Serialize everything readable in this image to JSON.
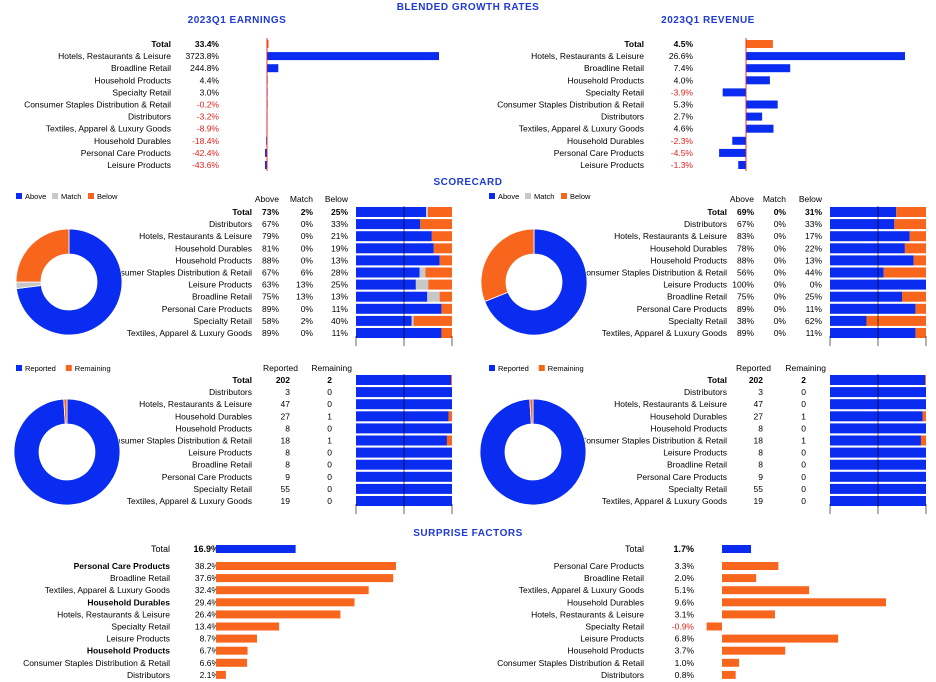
{
  "colors": {
    "blue": "#0a2cf0",
    "orange": "#f8661e",
    "match_gray": "#c8c8c8",
    "heading": "#1f3ad6",
    "negative": "#e4201c"
  },
  "sections": {
    "blended_title": "BLENDED GROWTH RATES",
    "scorecard_title": "SCORECARD",
    "surprise_title": "SURPRISE FACTORS"
  },
  "earnings_growth": {
    "title": "2023Q1 EARNINGS",
    "total_label": "Total",
    "total_value": "33.4%",
    "total_num": 33.4,
    "rows": [
      {
        "label": "Hotels, Restaurants & Leisure",
        "value": "3723.8%",
        "num": 3723.8
      },
      {
        "label": "Broadline Retail",
        "value": "244.8%",
        "num": 244.8
      },
      {
        "label": "Household Products",
        "value": "4.4%",
        "num": 4.4
      },
      {
        "label": "Specialty Retail",
        "value": "3.0%",
        "num": 3.0
      },
      {
        "label": "Consumer Staples Distribution & Retail",
        "value": "-0.2%",
        "num": -0.2
      },
      {
        "label": "Distributors",
        "value": "-3.2%",
        "num": -3.2
      },
      {
        "label": "Textiles, Apparel & Luxury Goods",
        "value": "-8.9%",
        "num": -8.9
      },
      {
        "label": "Household Durables",
        "value": "-18.4%",
        "num": -18.4
      },
      {
        "label": "Personal Care Products",
        "value": "-42.4%",
        "num": -42.4
      },
      {
        "label": "Leisure Products",
        "value": "-43.6%",
        "num": -43.6
      }
    ]
  },
  "revenue_growth": {
    "title": "2023Q1 REVENUE",
    "total_label": "Total",
    "total_value": "4.5%",
    "total_num": 4.5,
    "rows": [
      {
        "label": "Hotels, Restaurants & Leisure",
        "value": "26.6%",
        "num": 26.6
      },
      {
        "label": "Broadline Retail",
        "value": "7.4%",
        "num": 7.4
      },
      {
        "label": "Household Products",
        "value": "4.0%",
        "num": 4.0
      },
      {
        "label": "Specialty Retail",
        "value": "-3.9%",
        "num": -3.9
      },
      {
        "label": "Consumer Staples Distribution & Retail",
        "value": "5.3%",
        "num": 5.3
      },
      {
        "label": "Distributors",
        "value": "2.7%",
        "num": 2.7
      },
      {
        "label": "Textiles, Apparel & Luxury Goods",
        "value": "4.6%",
        "num": 4.6
      },
      {
        "label": "Household Durables",
        "value": "-2.3%",
        "num": -2.3
      },
      {
        "label": "Personal Care Products",
        "value": "-4.5%",
        "num": -4.5
      },
      {
        "label": "Leisure Products",
        "value": "-1.3%",
        "num": -1.3
      }
    ]
  },
  "scorecard_legend": [
    "Above",
    "Match",
    "Below"
  ],
  "scorecard_headers": [
    "Above",
    "Match",
    "Below"
  ],
  "earnings_scorecard": {
    "total": {
      "label": "Total",
      "above": "73%",
      "match": "2%",
      "below": "25%",
      "a": 73,
      "m": 2,
      "b": 25
    },
    "rows": [
      {
        "label": "Distributors",
        "above": "67%",
        "match": "0%",
        "below": "33%",
        "a": 67,
        "m": 0,
        "b": 33
      },
      {
        "label": "Hotels, Restaurants & Leisure",
        "above": "79%",
        "match": "0%",
        "below": "21%",
        "a": 79,
        "m": 0,
        "b": 21
      },
      {
        "label": "Household Durables",
        "above": "81%",
        "match": "0%",
        "below": "19%",
        "a": 81,
        "m": 0,
        "b": 19
      },
      {
        "label": "Household Products",
        "above": "88%",
        "match": "0%",
        "below": "13%",
        "a": 88,
        "m": 0,
        "b": 13
      },
      {
        "label": "Consumer Staples Distribution & Retail",
        "above": "67%",
        "match": "6%",
        "below": "28%",
        "a": 67,
        "m": 6,
        "b": 28
      },
      {
        "label": "Leisure Products",
        "above": "63%",
        "match": "13%",
        "below": "25%",
        "a": 63,
        "m": 13,
        "b": 25
      },
      {
        "label": "Broadline Retail",
        "above": "75%",
        "match": "13%",
        "below": "13%",
        "a": 75,
        "m": 13,
        "b": 13
      },
      {
        "label": "Personal Care Products",
        "above": "89%",
        "match": "0%",
        "below": "11%",
        "a": 89,
        "m": 0,
        "b": 11
      },
      {
        "label": "Specialty Retail",
        "above": "58%",
        "match": "2%",
        "below": "40%",
        "a": 58,
        "m": 2,
        "b": 40
      },
      {
        "label": "Textiles, Apparel & Luxury Goods",
        "above": "89%",
        "match": "0%",
        "below": "11%",
        "a": 89,
        "m": 0,
        "b": 11
      }
    ]
  },
  "revenue_scorecard": {
    "total": {
      "label": "Total",
      "above": "69%",
      "match": "0%",
      "below": "31%",
      "a": 69,
      "m": 0,
      "b": 31
    },
    "rows": [
      {
        "label": "Distributors",
        "above": "67%",
        "match": "0%",
        "below": "33%",
        "a": 67,
        "m": 0,
        "b": 33
      },
      {
        "label": "Hotels, Restaurants & Leisure",
        "above": "83%",
        "match": "0%",
        "below": "17%",
        "a": 83,
        "m": 0,
        "b": 17
      },
      {
        "label": "Household Durables",
        "above": "78%",
        "match": "0%",
        "below": "22%",
        "a": 78,
        "m": 0,
        "b": 22
      },
      {
        "label": "Household Products",
        "above": "88%",
        "match": "0%",
        "below": "13%",
        "a": 88,
        "m": 0,
        "b": 13
      },
      {
        "label": "Consumer Staples Distribution & Retail",
        "above": "56%",
        "match": "0%",
        "below": "44%",
        "a": 56,
        "m": 0,
        "b": 44
      },
      {
        "label": "Leisure Products",
        "above": "100%",
        "match": "0%",
        "below": "0%",
        "a": 100,
        "m": 0,
        "b": 0
      },
      {
        "label": "Broadline Retail",
        "above": "75%",
        "match": "0%",
        "below": "25%",
        "a": 75,
        "m": 0,
        "b": 25
      },
      {
        "label": "Personal Care Products",
        "above": "89%",
        "match": "0%",
        "below": "11%",
        "a": 89,
        "m": 0,
        "b": 11
      },
      {
        "label": "Specialty Retail",
        "above": "38%",
        "match": "0%",
        "below": "62%",
        "a": 38,
        "m": 0,
        "b": 62
      },
      {
        "label": "Textiles, Apparel & Luxury Goods",
        "above": "89%",
        "match": "0%",
        "below": "11%",
        "a": 89,
        "m": 0,
        "b": 11
      }
    ]
  },
  "reported_legend": [
    "Reported",
    "Remaining"
  ],
  "reported_headers": [
    "Reported",
    "Remaining"
  ],
  "earnings_reported": {
    "total": {
      "label": "Total",
      "reported": 202,
      "remaining": 2
    },
    "rows": [
      {
        "label": "Distributors",
        "reported": 3,
        "remaining": 0
      },
      {
        "label": "Hotels, Restaurants & Leisure",
        "reported": 47,
        "remaining": 0
      },
      {
        "label": "Household Durables",
        "reported": 27,
        "remaining": 1
      },
      {
        "label": "Household Products",
        "reported": 8,
        "remaining": 0
      },
      {
        "label": "Consumer Staples Distribution & Retail",
        "reported": 18,
        "remaining": 1
      },
      {
        "label": "Leisure Products",
        "reported": 8,
        "remaining": 0
      },
      {
        "label": "Broadline Retail",
        "reported": 8,
        "remaining": 0
      },
      {
        "label": "Personal Care Products",
        "reported": 9,
        "remaining": 0
      },
      {
        "label": "Specialty Retail",
        "reported": 55,
        "remaining": 0
      },
      {
        "label": "Textiles, Apparel & Luxury Goods",
        "reported": 19,
        "remaining": 0
      }
    ]
  },
  "revenue_reported": {
    "total": {
      "label": "Total",
      "reported": 202,
      "remaining": 2
    },
    "rows": [
      {
        "label": "Distributors",
        "reported": 3,
        "remaining": 0
      },
      {
        "label": "Hotels, Restaurants & Leisure",
        "reported": 47,
        "remaining": 0
      },
      {
        "label": "Household Durables",
        "reported": 27,
        "remaining": 1
      },
      {
        "label": "Household Products",
        "reported": 8,
        "remaining": 0
      },
      {
        "label": "Consumer Staples Distribution & Retail",
        "reported": 18,
        "remaining": 1
      },
      {
        "label": "Leisure Products",
        "reported": 8,
        "remaining": 0
      },
      {
        "label": "Broadline Retail",
        "reported": 8,
        "remaining": 0
      },
      {
        "label": "Personal Care Products",
        "reported": 9,
        "remaining": 0
      },
      {
        "label": "Specialty Retail",
        "reported": 55,
        "remaining": 0
      },
      {
        "label": "Textiles, Apparel & Luxury Goods",
        "reported": 19,
        "remaining": 0
      }
    ]
  },
  "earnings_surprise": {
    "total_label": "Total",
    "total_value": "16.9%",
    "total_num": 16.9,
    "rows": [
      {
        "label": "Personal Care Products",
        "value": "38.2%",
        "num": 38.2,
        "bold": true
      },
      {
        "label": "Broadline Retail",
        "value": "37.6%",
        "num": 37.6,
        "bold": false
      },
      {
        "label": "Textiles, Apparel & Luxury Goods",
        "value": "32.4%",
        "num": 32.4,
        "bold": false
      },
      {
        "label": "Household Durables",
        "value": "29.4%",
        "num": 29.4,
        "bold": true
      },
      {
        "label": "Hotels, Restaurants & Leisure",
        "value": "26.4%",
        "num": 26.4,
        "bold": false
      },
      {
        "label": "Specialty Retail",
        "value": "13.4%",
        "num": 13.4,
        "bold": false
      },
      {
        "label": "Leisure Products",
        "value": "8.7%",
        "num": 8.7,
        "bold": false
      },
      {
        "label": "Household Products",
        "value": "6.7%",
        "num": 6.7,
        "bold": true
      },
      {
        "label": "Consumer Staples Distribution & Retail",
        "value": "6.6%",
        "num": 6.6,
        "bold": false
      },
      {
        "label": "Distributors",
        "value": "2.1%",
        "num": 2.1,
        "bold": false
      }
    ]
  },
  "revenue_surprise": {
    "total_label": "Total",
    "total_value": "1.7%",
    "total_num": 1.7,
    "rows": [
      {
        "label": "Personal Care Products",
        "value": "3.3%",
        "num": 3.3
      },
      {
        "label": "Broadline Retail",
        "value": "2.0%",
        "num": 2.0
      },
      {
        "label": "Textiles, Apparel & Luxury Goods",
        "value": "5.1%",
        "num": 5.1
      },
      {
        "label": "Household Durables",
        "value": "9.6%",
        "num": 9.6
      },
      {
        "label": "Hotels, Restaurants & Leisure",
        "value": "3.1%",
        "num": 3.1
      },
      {
        "label": "Specialty Retail",
        "value": "-0.9%",
        "num": -0.9
      },
      {
        "label": "Leisure Products",
        "value": "6.8%",
        "num": 6.8
      },
      {
        "label": "Household Products",
        "value": "3.7%",
        "num": 3.7
      },
      {
        "label": "Consumer Staples Distribution & Retail",
        "value": "1.0%",
        "num": 1.0
      },
      {
        "label": "Distributors",
        "value": "0.8%",
        "num": 0.8
      }
    ]
  },
  "chart_data": [
    {
      "type": "bar",
      "title": "2023Q1 EARNINGS",
      "orientation": "horizontal",
      "categories": [
        "Total",
        "Hotels, Restaurants & Leisure",
        "Broadline Retail",
        "Household Products",
        "Specialty Retail",
        "Consumer Staples Distribution & Retail",
        "Distributors",
        "Textiles, Apparel & Luxury Goods",
        "Household Durables",
        "Personal Care Products",
        "Leisure Products"
      ],
      "values": [
        33.4,
        3723.8,
        244.8,
        4.4,
        3.0,
        -0.2,
        -3.2,
        -8.9,
        -18.4,
        -42.4,
        -43.6
      ]
    },
    {
      "type": "bar",
      "title": "2023Q1 REVENUE",
      "orientation": "horizontal",
      "categories": [
        "Total",
        "Hotels, Restaurants & Leisure",
        "Broadline Retail",
        "Household Products",
        "Specialty Retail",
        "Consumer Staples Distribution & Retail",
        "Distributors",
        "Textiles, Apparel & Luxury Goods",
        "Household Durables",
        "Personal Care Products",
        "Leisure Products"
      ],
      "values": [
        4.5,
        26.6,
        7.4,
        4.0,
        -3.9,
        5.3,
        2.7,
        4.6,
        -2.3,
        -4.5,
        -1.3
      ]
    },
    {
      "type": "pie",
      "donut": true,
      "legend": [
        "Above",
        "Match",
        "Below"
      ],
      "values": [
        73,
        2,
        25
      ]
    },
    {
      "type": "bar",
      "stacked": true,
      "orientation": "horizontal",
      "categories": [
        "Total",
        "Distributors",
        "Hotels, Restaurants & Leisure",
        "Household Durables",
        "Household Products",
        "Consumer Staples Distribution & Retail",
        "Leisure Products",
        "Broadline Retail",
        "Personal Care Products",
        "Specialty Retail",
        "Textiles, Apparel & Luxury Goods"
      ],
      "series": [
        {
          "name": "Above",
          "values": [
            73,
            67,
            79,
            81,
            88,
            67,
            63,
            75,
            89,
            58,
            89
          ]
        },
        {
          "name": "Match",
          "values": [
            2,
            0,
            0,
            0,
            0,
            6,
            13,
            13,
            0,
            2,
            0
          ]
        },
        {
          "name": "Below",
          "values": [
            25,
            33,
            21,
            19,
            13,
            28,
            25,
            13,
            11,
            40,
            11
          ]
        }
      ]
    },
    {
      "type": "pie",
      "donut": true,
      "legend": [
        "Above",
        "Match",
        "Below"
      ],
      "values": [
        69,
        0,
        31
      ]
    },
    {
      "type": "bar",
      "stacked": true,
      "orientation": "horizontal",
      "categories": [
        "Total",
        "Distributors",
        "Hotels, Restaurants & Leisure",
        "Household Durables",
        "Household Products",
        "Consumer Staples Distribution & Retail",
        "Leisure Products",
        "Broadline Retail",
        "Personal Care Products",
        "Specialty Retail",
        "Textiles, Apparel & Luxury Goods"
      ],
      "series": [
        {
          "name": "Above",
          "values": [
            69,
            67,
            83,
            78,
            88,
            56,
            100,
            75,
            89,
            38,
            89
          ]
        },
        {
          "name": "Match",
          "values": [
            0,
            0,
            0,
            0,
            0,
            0,
            0,
            0,
            0,
            0,
            0
          ]
        },
        {
          "name": "Below",
          "values": [
            31,
            33,
            17,
            22,
            13,
            44,
            0,
            25,
            11,
            62,
            11
          ]
        }
      ]
    },
    {
      "type": "pie",
      "donut": true,
      "legend": [
        "Reported",
        "Remaining"
      ],
      "values": [
        202,
        2
      ]
    },
    {
      "type": "pie",
      "donut": true,
      "legend": [
        "Reported",
        "Remaining"
      ],
      "values": [
        202,
        2
      ]
    },
    {
      "type": "bar",
      "orientation": "horizontal",
      "categories": [
        "Total",
        "Personal Care Products",
        "Broadline Retail",
        "Textiles, Apparel & Luxury Goods",
        "Household Durables",
        "Hotels, Restaurants & Leisure",
        "Specialty Retail",
        "Leisure Products",
        "Household Products",
        "Consumer Staples Distribution & Retail",
        "Distributors"
      ],
      "values": [
        16.9,
        38.2,
        37.6,
        32.4,
        29.4,
        26.4,
        13.4,
        8.7,
        6.7,
        6.6,
        2.1
      ]
    },
    {
      "type": "bar",
      "orientation": "horizontal",
      "categories": [
        "Total",
        "Personal Care Products",
        "Broadline Retail",
        "Textiles, Apparel & Luxury Goods",
        "Household Durables",
        "Hotels, Restaurants & Leisure",
        "Specialty Retail",
        "Leisure Products",
        "Household Products",
        "Consumer Staples Distribution & Retail",
        "Distributors"
      ],
      "values": [
        1.7,
        3.3,
        2.0,
        5.1,
        9.6,
        3.1,
        -0.9,
        6.8,
        3.7,
        1.0,
        0.8
      ]
    }
  ]
}
